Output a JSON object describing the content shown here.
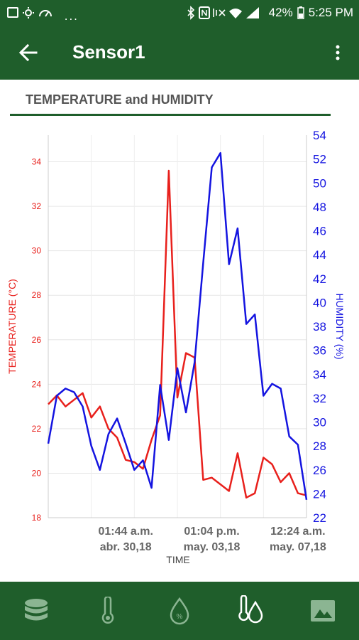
{
  "status_bar": {
    "left_icons": [
      "image-icon",
      "sun-icon",
      "gauge-icon"
    ],
    "overflow": "...",
    "right_icons": [
      "bluetooth-icon",
      "nfc-icon",
      "vibrate-icon",
      "wifi-icon",
      "signal-icon",
      "battery-icon"
    ],
    "battery": "42%",
    "time": "5:25 PM"
  },
  "app_bar": {
    "title": "Sensor1"
  },
  "section": {
    "title": "TEMPERATURE and HUMIDITY"
  },
  "colors": {
    "primary": "#1f5e2b",
    "temperature": "#e8201c",
    "humidity": "#1414e0"
  },
  "chart_data": {
    "type": "line",
    "title": "",
    "xlabel": "TIME",
    "left_axis": {
      "label": "TEMPERATURE (°C)",
      "ylim": [
        18,
        35.2
      ],
      "ticks": [
        18,
        20,
        22,
        24,
        26,
        28,
        30,
        32,
        34
      ]
    },
    "right_axis": {
      "label": "HUMIDITY (%)",
      "ylim": [
        22,
        54
      ],
      "ticks": [
        22,
        24,
        26,
        28,
        30,
        32,
        34,
        36,
        38,
        40,
        42,
        44,
        46,
        48,
        50,
        52,
        54
      ]
    },
    "x_ticks": [
      {
        "x": 9,
        "label1": "01:44 a.m.",
        "label2": "abr. 30,18"
      },
      {
        "x": 19,
        "label1": "01:04 p.m.",
        "label2": "may. 03,18"
      },
      {
        "x": 29,
        "label1": "12:24 a.m.",
        "label2": "may. 07,18"
      }
    ],
    "grid": true,
    "series": [
      {
        "name": "TEMPERATURE (°C)",
        "axis": "left",
        "values": [
          23.1,
          23.5,
          23.0,
          23.3,
          23.6,
          22.5,
          23.0,
          22.0,
          21.6,
          20.6,
          20.5,
          20.2,
          21.5,
          22.6,
          33.6,
          23.4,
          25.4,
          25.2,
          19.7,
          19.8,
          19.5,
          19.2,
          20.9,
          18.9,
          19.1,
          20.7,
          20.4,
          19.6,
          20.0,
          19.1,
          19.0
        ]
      },
      {
        "name": "HUMIDITY (%)",
        "axis": "right",
        "values": [
          28.2,
          32.2,
          32.8,
          32.5,
          31.3,
          28.0,
          26.0,
          29.0,
          30.3,
          28.2,
          26.0,
          26.8,
          24.5,
          33.1,
          28.5,
          34.5,
          30.8,
          35.0,
          43.3,
          51.3,
          52.5,
          43.2,
          46.2,
          38.2,
          39.0,
          32.2,
          33.2,
          32.8,
          28.8,
          28.1,
          23.5
        ]
      }
    ]
  },
  "bottom_nav": {
    "items": [
      "database-icon",
      "thermometer-icon",
      "humidity-icon",
      "temp-humidity-icon",
      "image-icon"
    ]
  }
}
